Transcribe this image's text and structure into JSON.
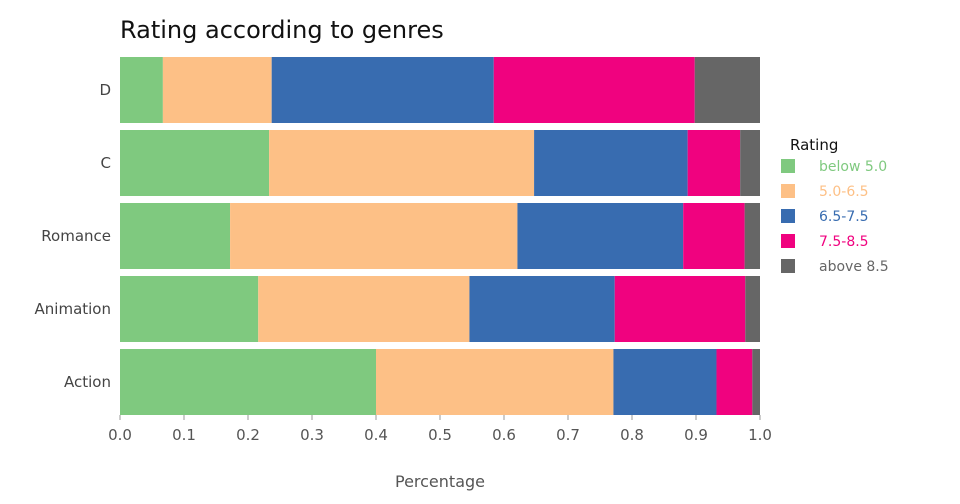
{
  "chart_data": {
    "type": "bar",
    "orientation": "horizontal",
    "stacked": true,
    "title": "Rating according to genres",
    "xlabel": "Percentage",
    "ylabel": "",
    "xlim": [
      0.0,
      1.0
    ],
    "xticks": [
      "0.0",
      "0.1",
      "0.2",
      "0.3",
      "0.4",
      "0.5",
      "0.6",
      "0.7",
      "0.8",
      "0.9",
      "1.0"
    ],
    "categories": [
      "D",
      "C",
      "Romance",
      "Animation",
      "Action"
    ],
    "legend": {
      "title": "Rating",
      "position": "right"
    },
    "series": [
      {
        "name": "below 5.0",
        "color": "#7fc97f",
        "values": [
          0.067,
          0.233,
          0.172,
          0.216,
          0.4
        ]
      },
      {
        "name": "5.0-6.5",
        "color": "#fdc086",
        "values": [
          0.17,
          0.414,
          0.449,
          0.33,
          0.371
        ]
      },
      {
        "name": "6.5-7.5",
        "color": "#386cb0",
        "values": [
          0.347,
          0.24,
          0.259,
          0.227,
          0.161
        ]
      },
      {
        "name": "7.5-8.5",
        "color": "#f0027f",
        "values": [
          0.314,
          0.082,
          0.096,
          0.204,
          0.056
        ]
      },
      {
        "name": "above 8.5",
        "color": "#666666",
        "values": [
          0.102,
          0.031,
          0.024,
          0.023,
          0.012
        ]
      }
    ]
  }
}
